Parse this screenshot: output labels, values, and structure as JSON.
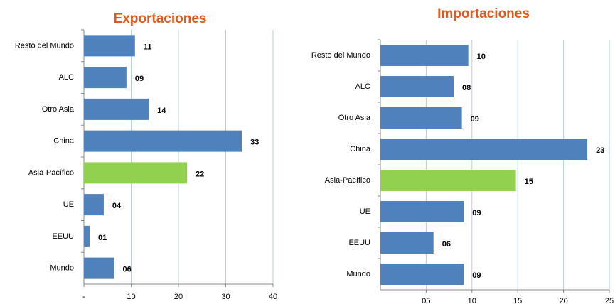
{
  "chart_data": [
    {
      "type": "barh",
      "title": "Exportaciones",
      "categories": [
        "Resto del Mundo",
        "ALC",
        "Otro Asia",
        "China",
        "Asia-Pacífico",
        "UE",
        "EEUU",
        "Mundo"
      ],
      "values": [
        10.8,
        9.0,
        13.7,
        33.4,
        21.8,
        4.2,
        1.2,
        6.4
      ],
      "value_labels": [
        "11",
        "09",
        "14",
        "33",
        "22",
        "04",
        "01",
        "06"
      ],
      "colors": [
        "#4f81bd",
        "#4f81bd",
        "#4f81bd",
        "#4f81bd",
        "#92d050",
        "#4f81bd",
        "#4f81bd",
        "#4f81bd"
      ],
      "xlim": [
        0,
        40
      ],
      "xticks": [
        {
          "value": 0,
          "label": "-"
        },
        10,
        20,
        30,
        40
      ],
      "grid": true
    },
    {
      "type": "barh",
      "title": "Importaciones",
      "categories": [
        "Resto del Mundo",
        "ALC",
        "Otro Asia",
        "China",
        "Asia-Pacífico",
        "UE",
        "EEUU",
        "Mundo"
      ],
      "values": [
        9.6,
        8.0,
        8.9,
        22.6,
        14.8,
        9.1,
        5.8,
        9.1
      ],
      "value_labels": [
        "10",
        "08",
        "09",
        "23",
        "15",
        "09",
        "06",
        "09"
      ],
      "colors": [
        "#4f81bd",
        "#4f81bd",
        "#4f81bd",
        "#4f81bd",
        "#92d050",
        "#4f81bd",
        "#4f81bd",
        "#4f81bd"
      ],
      "xlim": [
        0,
        25
      ],
      "xticks": [
        {
          "value": 5,
          "label": "05"
        },
        10,
        15,
        20,
        25
      ],
      "grid": true
    }
  ]
}
